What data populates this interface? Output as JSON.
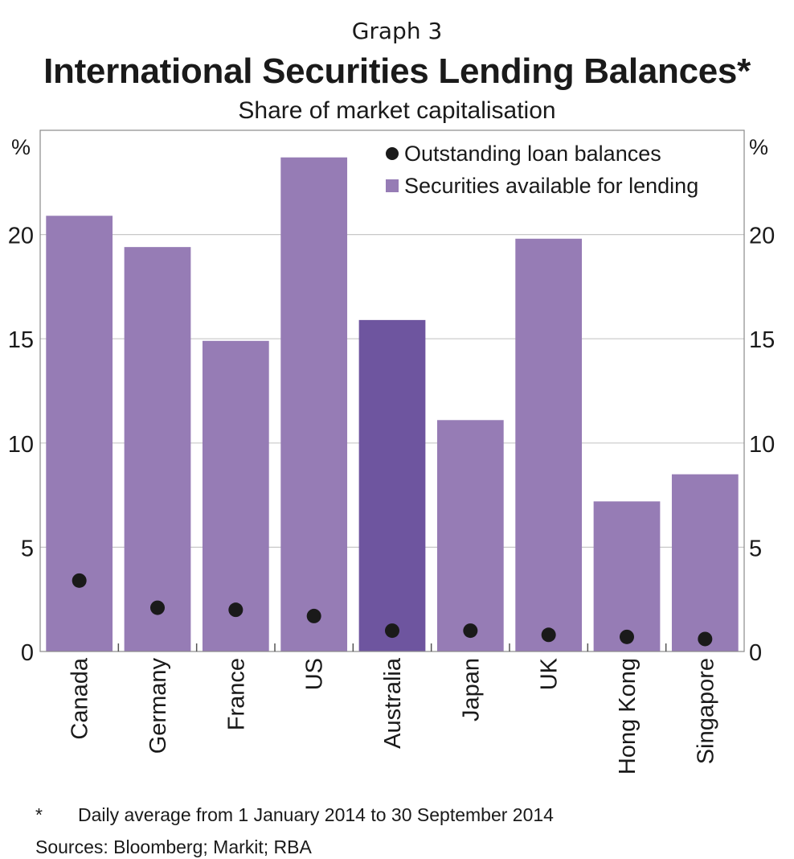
{
  "header": {
    "graph_label": "Graph 3",
    "title": "International Securities Lending Balances*",
    "subtitle": "Share of market capitalisation"
  },
  "chart_data": {
    "type": "bar",
    "categories": [
      "Canada",
      "Germany",
      "France",
      "US",
      "Australia",
      "Japan",
      "UK",
      "Hong Kong",
      "Singapore"
    ],
    "series": [
      {
        "name": "Securities available for lending",
        "kind": "bar",
        "values": [
          20.9,
          19.4,
          14.9,
          23.7,
          15.9,
          11.1,
          19.8,
          7.2,
          8.5
        ],
        "color": "#967cb5",
        "highlight": {
          "category": "Australia",
          "color": "#6e559f"
        }
      },
      {
        "name": "Outstanding loan balances",
        "kind": "dot",
        "values": [
          3.4,
          2.1,
          2.0,
          1.7,
          1.0,
          1.0,
          0.8,
          0.7,
          0.6
        ],
        "color": "#1a1a1a"
      }
    ],
    "ylim": [
      0,
      25
    ],
    "yticks": [
      0,
      5,
      10,
      15,
      20
    ],
    "unit_label": "%",
    "grid": true,
    "legend_position": "top-right"
  },
  "footer": {
    "footnote_mark": "*",
    "footnote_text": "Daily average from 1 January 2014 to 30 September 2014",
    "sources": "Sources:  Bloomberg; Markit; RBA"
  }
}
